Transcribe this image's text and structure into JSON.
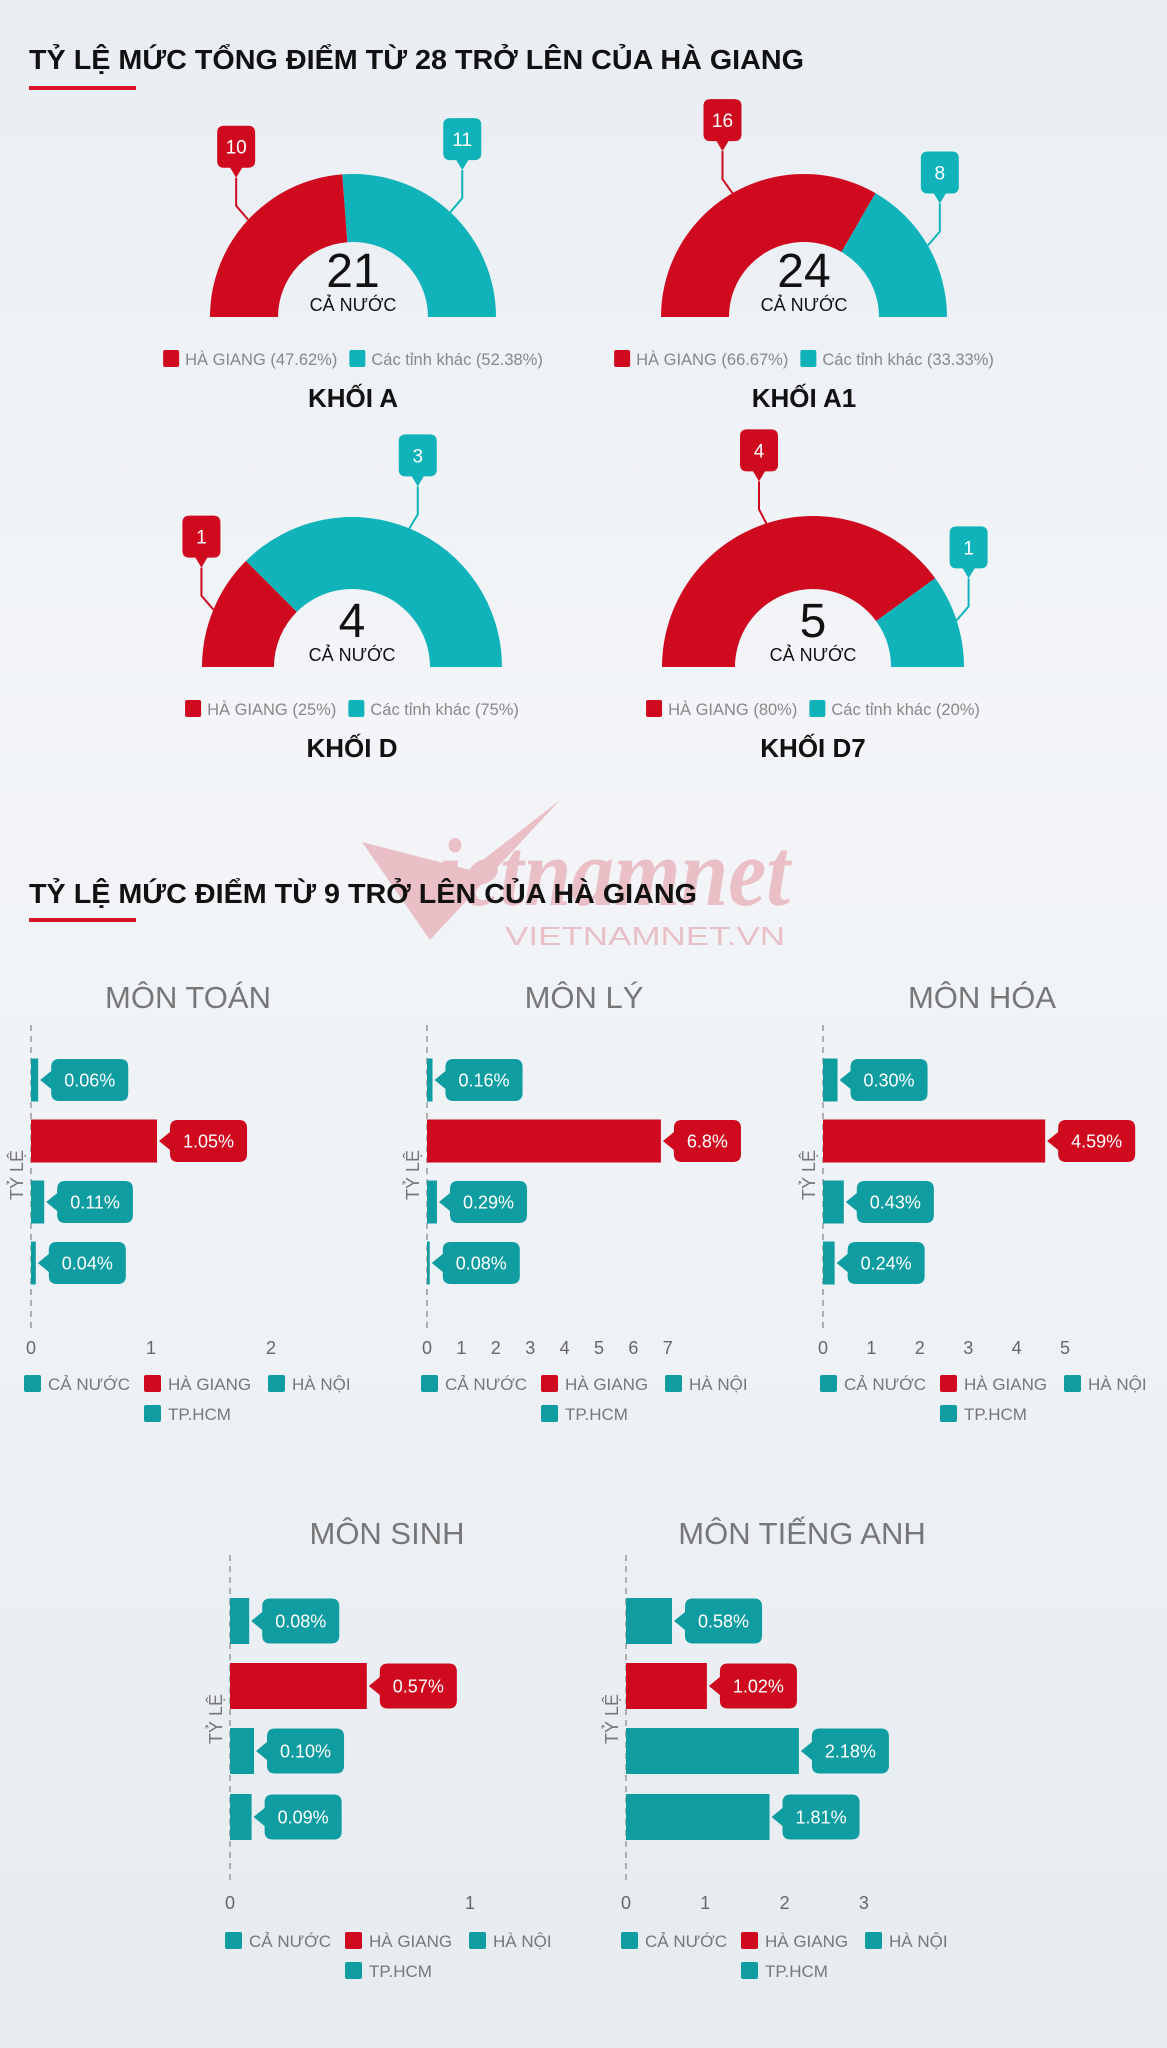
{
  "sections": {
    "gauges_title": "TỶ LỆ MỨC TỔNG ĐIỂM TỪ 28 TRỞ LÊN CỦA HÀ GIANG",
    "bars_title": "TỶ LỆ MỨC ĐIỂM TỪ 9 TRỞ LÊN CỦA HÀ GIANG"
  },
  "watermark": {
    "logo_text": "vietnamnet",
    "url_text": "VIETNAMNET.VN"
  },
  "colors": {
    "red": "#cf0a1f",
    "gauge_teal": "#11b3bb",
    "bar_teal": "#109da2",
    "accent_underline": "#d7142b"
  },
  "chart_data": [
    {
      "type": "pie",
      "variant": "semi-donut",
      "title": "KHỐI A",
      "center_value": "21",
      "center_label": "CẢ NƯỚC",
      "series": [
        {
          "name": "HÀ GIANG",
          "value": 10,
          "percent": "47.62%",
          "legend": "HÀ GIANG (47.62%)",
          "color": "#cf0a1f"
        },
        {
          "name": "Các tỉnh khác",
          "value": 11,
          "percent": "52.38%",
          "legend": "Các tỉnh khác (52.38%)",
          "color": "#11b3bb"
        }
      ]
    },
    {
      "type": "pie",
      "variant": "semi-donut",
      "title": "KHỐI A1",
      "center_value": "24",
      "center_label": "CẢ NƯỚC",
      "series": [
        {
          "name": "HÀ GIANG",
          "value": 16,
          "percent": "66.67%",
          "legend": "HÀ GIANG (66.67%)",
          "color": "#cf0a1f"
        },
        {
          "name": "Các tỉnh khác",
          "value": 8,
          "percent": "33.33%",
          "legend": "Các tỉnh khác (33.33%)",
          "color": "#11b3bb"
        }
      ]
    },
    {
      "type": "pie",
      "variant": "semi-donut",
      "title": "KHỐI D",
      "center_value": "4",
      "center_label": "CẢ NƯỚC",
      "series": [
        {
          "name": "HÀ GIANG",
          "value": 1,
          "percent": "25%",
          "legend": "HÀ GIANG (25%)",
          "color": "#cf0a1f"
        },
        {
          "name": "Các tỉnh khác",
          "value": 3,
          "percent": "75%",
          "legend": "Các tỉnh khác (75%)",
          "color": "#11b3bb"
        }
      ]
    },
    {
      "type": "pie",
      "variant": "semi-donut",
      "title": "KHỐI D7",
      "center_value": "5",
      "center_label": "CẢ NƯỚC",
      "series": [
        {
          "name": "HÀ GIANG",
          "value": 4,
          "percent": "80%",
          "legend": "HÀ GIANG (80%)",
          "color": "#cf0a1f"
        },
        {
          "name": "Các tỉnh khác",
          "value": 1,
          "percent": "20%",
          "legend": "Các tỉnh khác (20%)",
          "color": "#11b3bb"
        }
      ]
    },
    {
      "type": "bar",
      "orientation": "horizontal",
      "title": "MÔN TOÁN",
      "ylabel": "TỶ LỆ",
      "categories": [
        "CẢ NƯỚC",
        "HÀ GIANG",
        "HÀ NỘI",
        "TP.HCM"
      ],
      "values": [
        0.06,
        1.05,
        0.11,
        0.04
      ],
      "labels": [
        "0.06%",
        "1.05%",
        "0.11%",
        "0.04%"
      ],
      "colors": [
        "#109da2",
        "#cf0a1f",
        "#109da2",
        "#109da2"
      ],
      "xticks": [
        "0",
        "1",
        "2"
      ],
      "xlim": [
        0,
        2.5
      ],
      "legend": "bottom"
    },
    {
      "type": "bar",
      "orientation": "horizontal",
      "title": "MÔN LÝ",
      "ylabel": "TỶ LỆ",
      "categories": [
        "CẢ NƯỚC",
        "HÀ GIANG",
        "HÀ NỘI",
        "TP.HCM"
      ],
      "values": [
        0.16,
        6.8,
        0.29,
        0.08
      ],
      "labels": [
        "0.16%",
        "6.8%",
        "0.29%",
        "0.08%"
      ],
      "colors": [
        "#109da2",
        "#cf0a1f",
        "#109da2",
        "#109da2"
      ],
      "xticks": [
        "0",
        "1",
        "2",
        "3",
        "4",
        "5",
        "6",
        "7"
      ],
      "xlim": [
        0,
        8
      ],
      "legend": "bottom"
    },
    {
      "type": "bar",
      "orientation": "horizontal",
      "title": "MÔN HÓA",
      "ylabel": "TỶ LỆ",
      "categories": [
        "CẢ NƯỚC",
        "HÀ GIANG",
        "HÀ NỘI",
        "TP.HCM"
      ],
      "values": [
        0.3,
        4.59,
        0.43,
        0.24
      ],
      "labels": [
        "0.30%",
        "4.59%",
        "0.43%",
        "0.24%"
      ],
      "colors": [
        "#109da2",
        "#cf0a1f",
        "#109da2",
        "#109da2"
      ],
      "xticks": [
        "0",
        "1",
        "2",
        "3",
        "4",
        "5"
      ],
      "xlim": [
        0,
        6
      ],
      "legend": "bottom"
    },
    {
      "type": "bar",
      "orientation": "horizontal",
      "title": "MÔN SINH",
      "ylabel": "TỶ LỆ",
      "categories": [
        "CẢ NƯỚC",
        "HÀ GIANG",
        "HÀ NỘI",
        "TP.HCM"
      ],
      "values": [
        0.08,
        0.57,
        0.1,
        0.09
      ],
      "labels": [
        "0.08%",
        "0.57%",
        "0.10%",
        "0.09%"
      ],
      "colors": [
        "#109da2",
        "#cf0a1f",
        "#109da2",
        "#109da2"
      ],
      "xticks": [
        "0",
        "1"
      ],
      "xlim": [
        0,
        1.2
      ],
      "legend": "bottom"
    },
    {
      "type": "bar",
      "orientation": "horizontal",
      "title": "MÔN TIẾNG ANH",
      "ylabel": "TỶ LỆ",
      "categories": [
        "CẢ NƯỚC",
        "HÀ GIANG",
        "HÀ NỘI",
        "TP.HCM"
      ],
      "values": [
        0.58,
        1.02,
        2.18,
        1.81
      ],
      "labels": [
        "0.58%",
        "1.02%",
        "2.18%",
        "1.81%"
      ],
      "colors": [
        "#109da2",
        "#cf0a1f",
        "#109da2",
        "#109da2"
      ],
      "xticks": [
        "0",
        "1",
        "2",
        "3"
      ],
      "xlim": [
        0,
        3.5
      ],
      "legend": "bottom"
    }
  ]
}
